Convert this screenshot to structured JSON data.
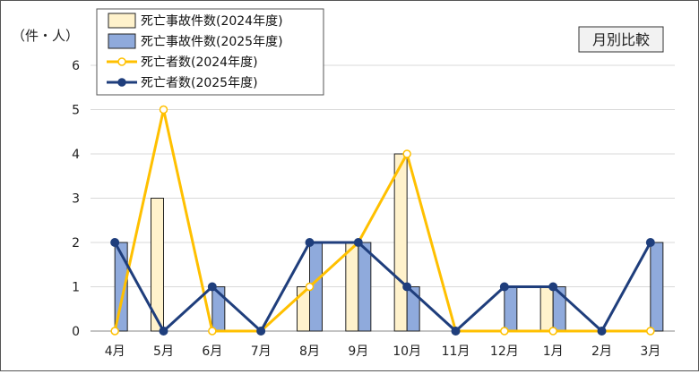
{
  "chart_data": {
    "type": "bar",
    "unit_label": "（件・人）",
    "tag": "月別比較",
    "categories": [
      "4月",
      "5月",
      "6月",
      "7月",
      "8月",
      "9月",
      "10月",
      "11月",
      "12月",
      "1月",
      "2月",
      "3月"
    ],
    "ylim": [
      0,
      6
    ],
    "yticks": [
      0,
      1,
      2,
      3,
      4,
      5,
      6
    ],
    "grid": true,
    "legend_position": "top-left",
    "bar_series": [
      {
        "name": "死亡事故件数(2024年度)",
        "values": [
          0,
          3,
          0,
          0,
          1,
          2,
          4,
          0,
          0,
          1,
          0,
          0
        ],
        "color": "#FFF2CC",
        "stroke": "#222222"
      },
      {
        "name": "死亡事故件数(2025年度)",
        "values": [
          2,
          0,
          1,
          0,
          2,
          2,
          1,
          0,
          1,
          1,
          0,
          2
        ],
        "color": "#8FAADC",
        "stroke": "#222222"
      }
    ],
    "line_series": [
      {
        "name": "死亡者数(2024年度)",
        "values": [
          0,
          5,
          0,
          0,
          1,
          2,
          4,
          0,
          0,
          0,
          0,
          0
        ],
        "color": "#FFC000",
        "marker": "open-circle"
      },
      {
        "name": "死亡者数(2025年度)",
        "values": [
          2,
          0,
          1,
          0,
          2,
          2,
          1,
          0,
          1,
          1,
          0,
          2
        ],
        "color": "#1F3E7C",
        "marker": "filled-circle"
      }
    ]
  }
}
